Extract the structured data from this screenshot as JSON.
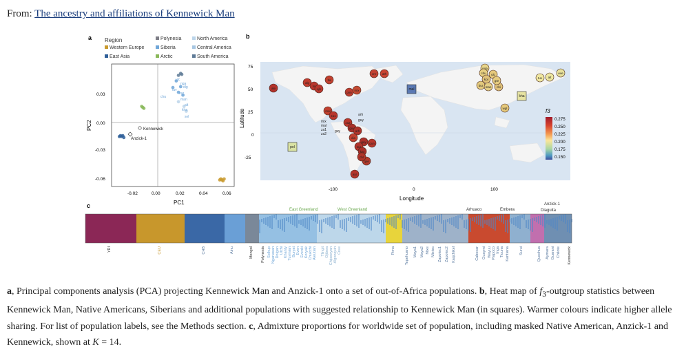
{
  "header": {
    "from_label": "From:",
    "article_link": "The ancestry and affiliations of Kennewick Man"
  },
  "panel_a": {
    "letter": "a",
    "legend_title": "Region",
    "legend": [
      {
        "name": "Western Europe",
        "color": "#c99a2e"
      },
      {
        "name": "East Asia",
        "color": "#2f5f99"
      },
      {
        "name": "Polynesia",
        "color": "#7e7e87"
      },
      {
        "name": "Siberia",
        "color": "#6fa6d8"
      },
      {
        "name": "Arctic",
        "color": "#8ab85a"
      },
      {
        "name": "North America",
        "color": "#bcd5ea"
      },
      {
        "name": "Central America",
        "color": "#a8c7e2"
      },
      {
        "name": "South America",
        "color": "#5f7b97"
      }
    ],
    "xlabel": "PC1",
    "ylabel": "PC2",
    "xticks": [
      "-0.02",
      "0.00",
      "0.02",
      "0.04",
      "0.06"
    ],
    "yticks": [
      "0.03",
      "0.00",
      "-0.03",
      "-0.06"
    ],
    "annotations": [
      "Kennewick",
      "Anzick-1"
    ],
    "siberian_labels": [
      "ulc",
      "nga",
      "chu",
      "tuv",
      "dlg",
      "bur",
      "man",
      "alt",
      "kha",
      "sel"
    ]
  },
  "panel_b": {
    "letter": "b",
    "xlabel": "Longitude",
    "ylabel": "Latitude",
    "xticks": [
      "-100",
      "0",
      "100"
    ],
    "yticks": [
      "75",
      "50",
      "25",
      "0",
      "-25"
    ],
    "colorbar_title": "f3",
    "colorbar_ticks": [
      "0.275",
      "0.250",
      "0.225",
      "0.200",
      "0.175",
      "0.150"
    ],
    "circle_labels": [
      "ale",
      "nga",
      "chu",
      "ulc",
      "kor",
      "eve",
      "alt",
      "tuv",
      "bur",
      "man",
      "chi",
      "gre",
      "wgl",
      "ath",
      "cre",
      "alg",
      "tsi",
      "ojb",
      "tla",
      "pim",
      "mix",
      "mal",
      "za1",
      "za2",
      "guy",
      "arh",
      "guy",
      "sur",
      "kar",
      "que",
      "ayr",
      "gua",
      "chl",
      "dia"
    ],
    "square_labels": [
      "pol",
      "tsi",
      "mal",
      "ain",
      "kha"
    ],
    "point_labels": [
      "arh",
      "guy",
      "mix",
      "mal",
      "za1",
      "za2",
      "guy"
    ]
  },
  "panel_c": {
    "letter": "c",
    "top_labels": [
      "East Greenland",
      "West Greenland",
      "Arhuaco",
      "Embera",
      "Anzick-1",
      "Diaguita"
    ],
    "populations": [
      "YRI",
      "CEU",
      "CHB",
      "Ainu",
      "Mongol",
      "Polynesia",
      "Selkup",
      "Nganasan",
      "Dolgan",
      "Ulchi",
      "Khanty",
      "Tuvinian",
      "Buryat",
      "Even",
      "Evenki",
      "Koryak",
      "Chukchi",
      "Aleutian",
      "Tlingit",
      "Ojibwa",
      "Chipewyan",
      "Algonquin",
      "Cree",
      "Pima",
      "Tepehuano",
      "Maya1",
      "Maya2",
      "Mixe",
      "Mixtec",
      "Zapotec1",
      "Zapotec2",
      "Kaqchikel",
      "Cabecar",
      "Guaymi",
      "Wayuu",
      "Piapoco",
      "Inga",
      "Ticuna",
      "Karitiana",
      "Surui",
      "Quechua",
      "Aymara",
      "Guarani",
      "Chilote",
      "Kennewick"
    ]
  },
  "caption": {
    "a_letter": "a",
    "a_text": ", Principal components analysis (PCA) projecting Kennewick Man and Anzick-1 onto a set of out-of-Africa populations. ",
    "b_letter": "b",
    "b_text1": ", Heat map of ",
    "f3": "f",
    "f3_sub": "3",
    "b_text2": "-outgroup statistics between Kennewick Man, Native Americans, Siberians and additional populations with suggested relationship to Kennewick Man (in squares). Warmer colours indicate higher allele sharing. For list of population labels, see the Methods section. ",
    "c_letter": "c",
    "c_text1": ", Admixture proportions for worldwide set of population, including masked Native American, Anzick-1 and Kennewick, shown at ",
    "K": "K",
    "c_text2": " = 14."
  },
  "chart_data": [
    {
      "type": "scatter",
      "panel": "a",
      "xlabel": "PC1",
      "ylabel": "PC2",
      "xlim": [
        -0.04,
        0.07
      ],
      "ylim": [
        -0.07,
        0.06
      ],
      "series": [
        {
          "name": "Western Europe",
          "x": [
            0.058,
            0.059,
            0.06,
            0.061,
            0.057
          ],
          "y": [
            -0.062,
            -0.063,
            -0.064,
            -0.062,
            -0.063
          ]
        },
        {
          "name": "East Asia",
          "x": [
            -0.03,
            -0.031,
            -0.032,
            -0.029,
            -0.033
          ],
          "y": [
            -0.016,
            -0.017,
            -0.016,
            -0.018,
            -0.017
          ]
        },
        {
          "name": "Arctic",
          "x": [
            -0.012,
            -0.013,
            -0.011
          ],
          "y": [
            0.014,
            0.015,
            0.013
          ]
        },
        {
          "name": "Siberia",
          "x": [
            0.015,
            0.018,
            0.022,
            0.02,
            0.024
          ],
          "y": [
            0.035,
            0.042,
            0.036,
            0.03,
            0.027
          ]
        },
        {
          "name": "North America",
          "x": [
            0.02,
            0.025,
            0.027
          ],
          "y": [
            0.02,
            0.015,
            0.01
          ]
        },
        {
          "name": "South America",
          "x": [
            0.02,
            0.022,
            0.023
          ],
          "y": [
            0.048,
            0.05,
            0.049
          ]
        }
      ],
      "annotations": [
        {
          "text": "Kennewick",
          "x": -0.015,
          "y": -0.005
        },
        {
          "text": "Anzick-1",
          "x": -0.025,
          "y": -0.015
        }
      ]
    },
    {
      "type": "heatmap",
      "panel": "b",
      "xlabel": "Longitude",
      "ylabel": "Latitude",
      "colorbar": {
        "min": 0.15,
        "max": 0.275
      }
    },
    {
      "type": "bar",
      "panel": "c",
      "title": "",
      "K": 14
    }
  ]
}
